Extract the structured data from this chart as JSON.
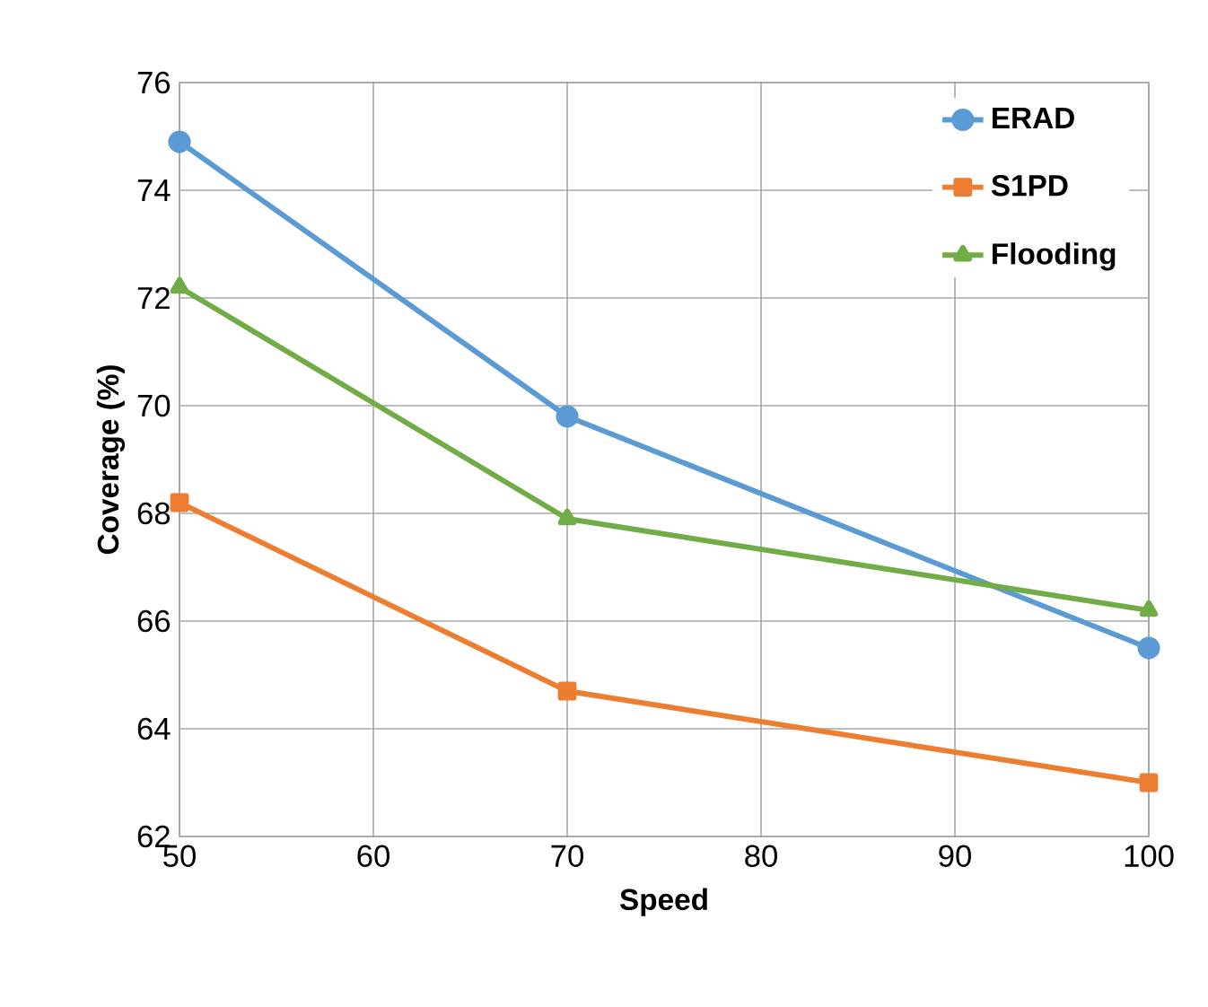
{
  "chart_data": {
    "type": "line",
    "xlabel": "Speed",
    "ylabel": "Coverage (%)",
    "x": [
      50,
      70,
      100
    ],
    "series": [
      {
        "name": "ERAD",
        "color": "#5b9bd5",
        "marker": "circle",
        "values": [
          74.9,
          69.8,
          65.5
        ]
      },
      {
        "name": "S1PD",
        "color": "#ed7d31",
        "marker": "square",
        "values": [
          68.2,
          64.7,
          63.0
        ]
      },
      {
        "name": "Flooding",
        "color": "#70ad47",
        "marker": "triangle",
        "values": [
          72.2,
          67.9,
          66.2
        ]
      }
    ],
    "xlim": [
      50,
      100
    ],
    "xticks": [
      50,
      60,
      70,
      80,
      90,
      100
    ],
    "ylim": [
      62,
      76
    ],
    "yticks": [
      62,
      64,
      66,
      68,
      70,
      72,
      74,
      76
    ],
    "grid": true,
    "legend": "top right",
    "line_style": "solid"
  }
}
